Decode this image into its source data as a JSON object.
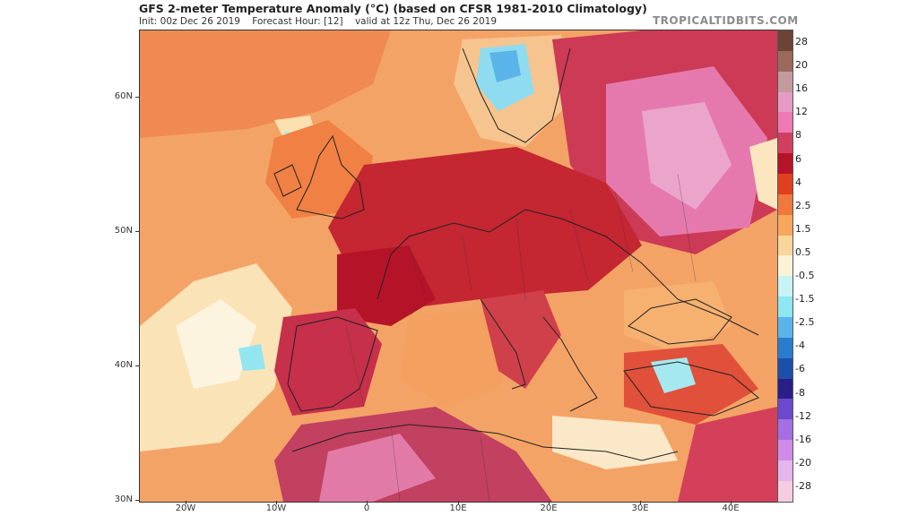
{
  "header": {
    "title": "GFS 2-meter Temperature Anomaly (°C) (based on CFSR 1981-2010 Climatology)",
    "init": "Init: 00z Dec 26 2019",
    "forecast_hour": "Forecast Hour: [12]",
    "valid": "valid at 12z Thu, Dec 26 2019",
    "credit": "TROPICALTIDBITS.COM"
  },
  "axes": {
    "latitudes": [
      "60N",
      "50N",
      "40N",
      "30N"
    ],
    "longitudes": [
      "20W",
      "10W",
      "0",
      "10E",
      "20E",
      "30E",
      "40E"
    ]
  },
  "colorbar": {
    "labels": [
      "28",
      "20",
      "16",
      "12",
      "8",
      "6",
      "4",
      "2.5",
      "1.5",
      "0.5",
      "-0.5",
      "-1.5",
      "-2.5",
      "-4",
      "-6",
      "-8",
      "-12",
      "-16",
      "-20",
      "-28"
    ],
    "colors": [
      "#6b4436",
      "#9a6a5a",
      "#c39a9e",
      "#e59bc3",
      "#ef79b4",
      "#d0405e",
      "#b51428",
      "#e0401e",
      "#f0783c",
      "#f7a85c",
      "#f9d79c",
      "#fbf2d8",
      "#c7f3f5",
      "#8ee6f0",
      "#5ab4ea",
      "#2a7ccf",
      "#1c4fa9",
      "#2a1f88",
      "#6b4ad0",
      "#a36fe3",
      "#d08be8",
      "#e3b6ec",
      "#f4cde0"
    ]
  }
}
